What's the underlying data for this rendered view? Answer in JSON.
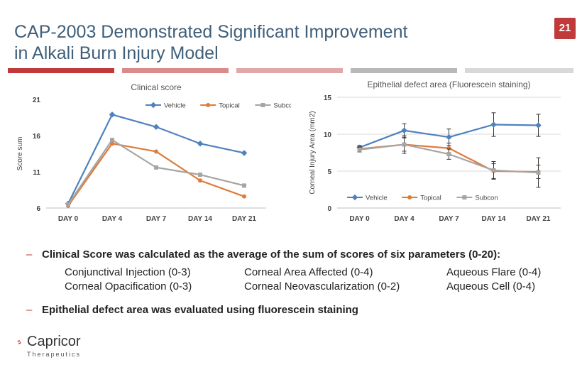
{
  "slide": {
    "title_line1": "CAP-2003 Demonstrated Significant Improvement",
    "title_line2": "in Alkali Burn Injury Model",
    "page_number": "21",
    "divider_colors": [
      "#c0393b",
      "#d98a8b",
      "#e0a8a9",
      "#b8b8b8",
      "#d8d8d8"
    ]
  },
  "chart_data": [
    {
      "type": "line",
      "title": "Clinical score",
      "xlabel": "",
      "ylabel": "Score sum",
      "categories": [
        "DAY 0",
        "DAY 4",
        "DAY 7",
        "DAY 14",
        "DAY 21"
      ],
      "ylim": [
        6,
        21
      ],
      "yticks": [
        6,
        11,
        16,
        21
      ],
      "legend_position": "top",
      "grid": false,
      "series": [
        {
          "name": "Vehicle",
          "color": "#4f81bd",
          "values": [
            6.6,
            18.9,
            17.2,
            14.9,
            13.6
          ]
        },
        {
          "name": "Topical",
          "color": "#e07b39",
          "values": [
            6.3,
            14.9,
            13.8,
            9.8,
            7.6
          ]
        },
        {
          "name": "Subcon.",
          "color": "#a5a5a5",
          "values": [
            6.5,
            15.4,
            11.6,
            10.6,
            9.1
          ]
        }
      ]
    },
    {
      "type": "line",
      "title": "Epithelial defect area (Fluorescein staining)",
      "xlabel": "",
      "ylabel": "Corneal Injury Area (mm2)",
      "categories": [
        "DAY 0",
        "DAY 4",
        "DAY 7",
        "DAY 14",
        "DAY 21"
      ],
      "ylim": [
        0,
        15
      ],
      "yticks": [
        0,
        5,
        10,
        15
      ],
      "legend_position": "bottom-left",
      "grid": true,
      "series": [
        {
          "name": "Vehicle",
          "color": "#4f81bd",
          "values": [
            8.2,
            10.5,
            9.6,
            11.3,
            11.2
          ],
          "error": [
            0.3,
            0.9,
            1.1,
            1.6,
            1.5
          ]
        },
        {
          "name": "Topical",
          "color": "#e07b39",
          "values": [
            8.0,
            8.6,
            8.1,
            5.0,
            4.9
          ],
          "error": [
            0.3,
            0.9,
            0.7,
            1.0,
            0.9
          ]
        },
        {
          "name": "Subcon",
          "color": "#a5a5a5",
          "values": [
            7.9,
            8.6,
            7.3,
            5.1,
            4.8
          ],
          "error": [
            0.3,
            1.2,
            0.7,
            1.2,
            2.0
          ]
        }
      ]
    }
  ],
  "bullets": {
    "clinical_score": "Clinical Score was calculated as the average of the sum of scores of six parameters (0-20):",
    "parameters": [
      "Conjunctival Injection (0-3)",
      "Corneal Area Affected (0-4)",
      "Aqueous Flare (0-4)",
      "Corneal Opacification (0-3)",
      "Corneal Neovascularization (0-2)",
      "Aqueous Cell (0-4)"
    ],
    "epithelial": "Epithelial defect area was evaluated using fluorescein staining",
    "dash": "–"
  },
  "logo": {
    "name": "Capricor",
    "sub": "Therapeutics",
    "color": "#c0393b"
  }
}
